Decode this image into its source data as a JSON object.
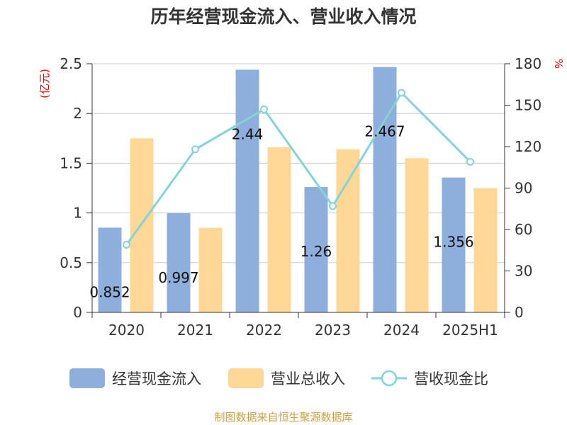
{
  "chart_data": {
    "type": "bar",
    "title": "历年经营现金流入、营业收入情况",
    "categories": [
      "2020",
      "2021",
      "2022",
      "2023",
      "2024",
      "2025H1"
    ],
    "series": [
      {
        "name": "经营现金流入",
        "kind": "bar",
        "axis": "left",
        "color": "#8eaedb",
        "values": [
          0.852,
          0.997,
          2.44,
          1.26,
          2.467,
          1.356
        ],
        "labels": [
          "0.852",
          "0.997",
          "2.44",
          "1.26",
          "2.467",
          "1.356"
        ]
      },
      {
        "name": "营业总收入",
        "kind": "bar",
        "axis": "left",
        "color": "#ffd796",
        "values": [
          1.75,
          0.85,
          1.66,
          1.64,
          1.55,
          1.25
        ]
      },
      {
        "name": "营收现金比",
        "kind": "line",
        "axis": "right",
        "color": "#86d3d6",
        "values": [
          49,
          118,
          147,
          77,
          159,
          109
        ]
      }
    ],
    "y_left": {
      "unit": "(亿元)",
      "ylim": [
        0,
        2.5
      ],
      "ticks": [
        "0",
        "0.5",
        "1",
        "1.5",
        "2",
        "2.5"
      ]
    },
    "y_right": {
      "unit": "%",
      "ylim": [
        0,
        180
      ],
      "ticks": [
        "0",
        "30",
        "60",
        "90",
        "120",
        "150",
        "180"
      ]
    },
    "grid": true,
    "legend_position": "bottom"
  },
  "source": "制图数据来自恒生聚源数据库"
}
